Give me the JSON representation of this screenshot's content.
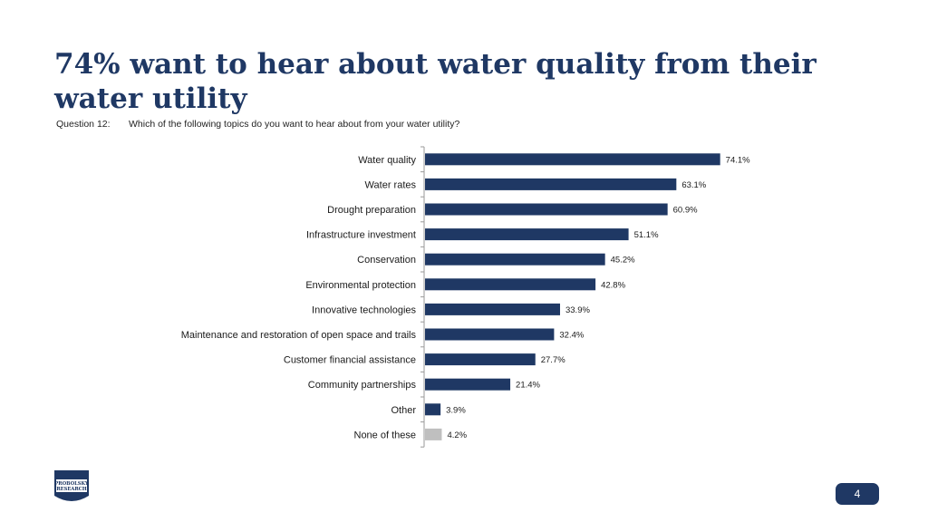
{
  "slide": {
    "title": "74% want to hear about water quality from their water utility",
    "question_label": "Question 12:",
    "question_text": "Which of the following topics do you want to hear about from your water utility?",
    "page_number": "4",
    "logo_line1": "PROBOLSKY",
    "logo_line2": "RESEARCH"
  },
  "colors": {
    "bar": "#1f3864",
    "bar_muted": "#bfbfbf",
    "axis": "#9a9a9a"
  },
  "chart_data": {
    "type": "bar",
    "orientation": "horizontal",
    "categories": [
      "Water quality",
      "Water rates",
      "Drought preparation",
      "Infrastructure investment",
      "Conservation",
      "Environmental protection",
      "Innovative technologies",
      "Maintenance and restoration of open space and trails",
      "Customer financial assistance",
      "Community partnerships",
      "Other",
      "None of these"
    ],
    "values": [
      74.1,
      63.1,
      60.9,
      51.1,
      45.2,
      42.8,
      33.9,
      32.4,
      27.7,
      21.4,
      3.9,
      4.2
    ],
    "value_labels": [
      "74.1%",
      "63.1%",
      "60.9%",
      "51.1%",
      "45.2%",
      "42.8%",
      "33.9%",
      "32.4%",
      "27.7%",
      "21.4%",
      "3.9%",
      "4.2%"
    ],
    "muted_categories": [
      "None of these"
    ],
    "xlim": [
      0,
      100
    ],
    "unit": "%"
  }
}
